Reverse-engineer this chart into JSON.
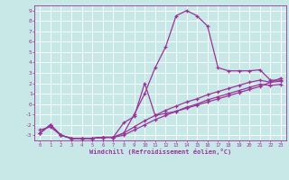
{
  "xlabel": "Windchill (Refroidissement éolien,°C)",
  "xlim": [
    -0.5,
    23.5
  ],
  "ylim": [
    -3.5,
    9.5
  ],
  "xticks": [
    0,
    1,
    2,
    3,
    4,
    5,
    6,
    7,
    8,
    9,
    10,
    11,
    12,
    13,
    14,
    15,
    16,
    17,
    18,
    19,
    20,
    21,
    22,
    23
  ],
  "yticks": [
    -3,
    -2,
    -1,
    0,
    1,
    2,
    3,
    4,
    5,
    6,
    7,
    8,
    9
  ],
  "bg_color": "#c8e8e8",
  "grid_color": "#aacccc",
  "line_color": "#993399",
  "lines": [
    {
      "x": [
        0,
        1,
        2,
        3,
        4,
        5,
        6,
        7,
        8,
        9,
        10,
        11,
        12,
        13,
        14,
        15,
        16,
        17,
        18,
        19,
        20,
        21,
        22,
        23
      ],
      "y": [
        -2.5,
        -2.2,
        -3.0,
        -3.3,
        -3.3,
        -3.3,
        -3.2,
        -3.2,
        -2.8,
        -1.0,
        1.0,
        3.5,
        5.5,
        8.5,
        9.0,
        8.5,
        7.5,
        3.5,
        3.2,
        3.2,
        3.2,
        3.3,
        2.3,
        2.3
      ]
    },
    {
      "x": [
        0,
        1,
        2,
        3,
        4,
        5,
        6,
        7,
        8,
        9,
        10,
        11,
        12,
        13,
        14,
        15,
        16,
        17,
        18,
        19,
        20,
        21,
        22,
        23
      ],
      "y": [
        -2.8,
        -2.0,
        -3.0,
        -3.3,
        -3.3,
        -3.3,
        -3.2,
        -3.2,
        -1.8,
        -1.2,
        2.0,
        -1.1,
        -0.9,
        -0.7,
        -0.4,
        -0.1,
        0.2,
        0.5,
        0.8,
        1.1,
        1.4,
        1.7,
        2.1,
        2.5
      ]
    },
    {
      "x": [
        0,
        1,
        2,
        3,
        4,
        5,
        6,
        7,
        8,
        9,
        10,
        11,
        12,
        13,
        14,
        15,
        16,
        17,
        18,
        19,
        20,
        21,
        22,
        23
      ],
      "y": [
        -2.8,
        -2.0,
        -3.0,
        -3.3,
        -3.3,
        -3.3,
        -3.2,
        -3.2,
        -2.8,
        -2.2,
        -1.6,
        -1.1,
        -0.6,
        -0.2,
        0.2,
        0.5,
        0.9,
        1.2,
        1.5,
        1.8,
        2.1,
        2.3,
        2.1,
        2.2
      ]
    },
    {
      "x": [
        0,
        1,
        2,
        3,
        4,
        5,
        6,
        7,
        8,
        9,
        10,
        11,
        12,
        13,
        14,
        15,
        16,
        17,
        18,
        19,
        20,
        21,
        22,
        23
      ],
      "y": [
        -2.8,
        -2.0,
        -3.0,
        -3.3,
        -3.3,
        -3.3,
        -3.2,
        -3.2,
        -3.0,
        -2.5,
        -2.0,
        -1.5,
        -1.1,
        -0.7,
        -0.3,
        0.0,
        0.4,
        0.7,
        1.0,
        1.3,
        1.6,
        1.9,
        1.8,
        1.9
      ]
    }
  ]
}
